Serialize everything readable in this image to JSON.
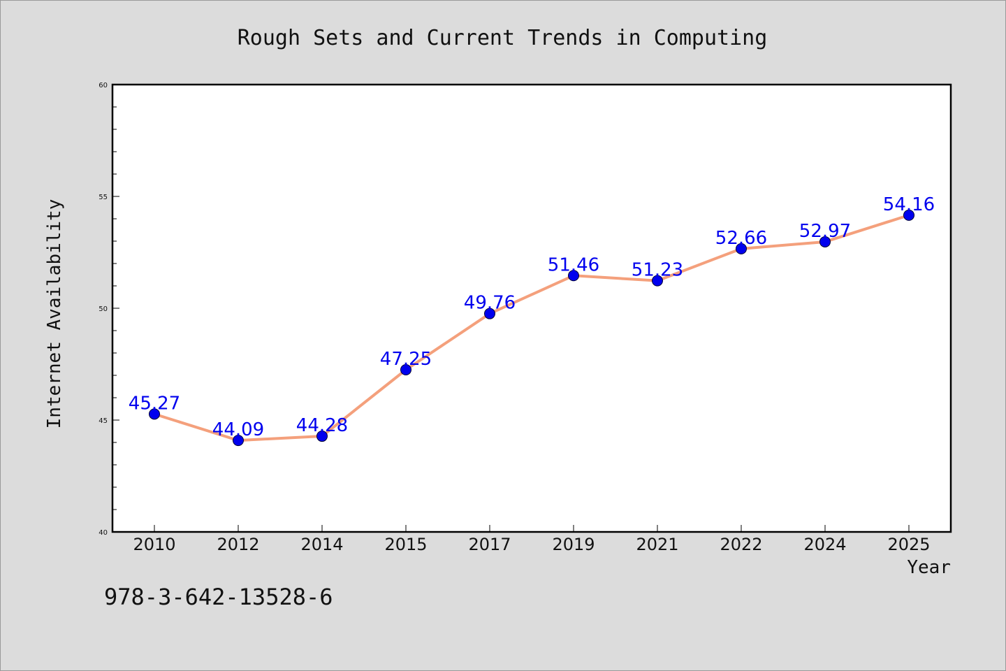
{
  "chart_data": {
    "type": "line",
    "title": "Rough Sets and Current Trends in Computing",
    "xlabel": "Year",
    "ylabel": "Internet Availability",
    "categories": [
      "2010",
      "2012",
      "2014",
      "2015",
      "2017",
      "2019",
      "2021",
      "2022",
      "2024",
      "2025"
    ],
    "series": [
      {
        "values": [
          45.27,
          44.09,
          44.28,
          47.25,
          49.76,
          51.46,
          51.23,
          52.66,
          52.97,
          54.16
        ],
        "labels": [
          "45.27",
          "44.09",
          "44.28",
          "47.25",
          "49.76",
          "51.46",
          "51.23",
          "52.66",
          "52.97",
          "54.16"
        ],
        "line_color": "#f4a07c",
        "marker_color": "#0000ee",
        "label_color": "#0000ee"
      }
    ],
    "ylim": [
      40,
      60
    ],
    "yticks": [
      "40",
      "45",
      "50",
      "55",
      "60"
    ],
    "grid": false,
    "legend": "none"
  },
  "footer": {
    "isbn": "978-3-642-13528-6"
  }
}
